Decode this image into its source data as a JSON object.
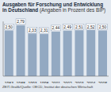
{
  "chart_data": {
    "type": "bar",
    "title": "Ausgaben für Forschung und Entwicklung in Deutschland",
    "subtitle": "(Angaben in Prozent des BIP)",
    "source": "ZEIT-Grafik/Quelle: OECD, Institut der deutschen Wirtschaft",
    "categories": [
      "1983",
      "1988",
      "1993",
      "1998",
      "2001",
      "2002",
      "2003",
      "2004",
      "2005"
    ],
    "values": [
      2.5,
      2.79,
      2.33,
      2.31,
      2.44,
      2.49,
      2.51,
      2.52,
      2.5
    ],
    "value_labels": [
      "2,50",
      "2,79",
      "2,33",
      "2,31",
      "2,44",
      "2,49",
      "2,51",
      "2,52",
      "2,50"
    ],
    "color": "#93a9c2",
    "ylim": [
      0,
      3
    ],
    "yticks": [
      0,
      3
    ],
    "data_labels": true,
    "tick_labels": "x",
    "grid": false
  }
}
